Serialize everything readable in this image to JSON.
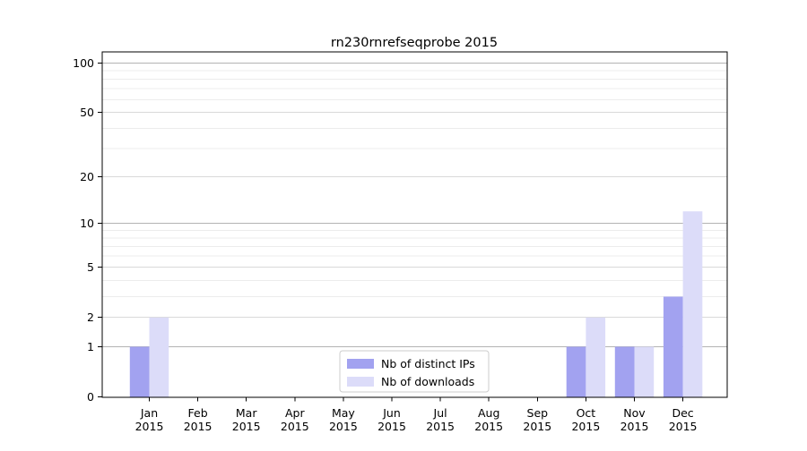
{
  "chart_data": {
    "type": "bar",
    "title": "rn230rnrefseqprobe 2015",
    "categories": [
      "Jan",
      "Feb",
      "Mar",
      "Apr",
      "May",
      "Jun",
      "Jul",
      "Aug",
      "Sep",
      "Oct",
      "Nov",
      "Dec"
    ],
    "category_year": "2015",
    "series": [
      {
        "name": "Nb of distinct IPs",
        "color": "#a2a2f0",
        "values": [
          1,
          0,
          0,
          0,
          0,
          0,
          0,
          0,
          0,
          1,
          1,
          3
        ]
      },
      {
        "name": "Nb of downloads",
        "color": "#dcdcf9",
        "values": [
          2,
          0,
          0,
          0,
          0,
          0,
          0,
          0,
          0,
          2,
          1,
          12
        ]
      }
    ],
    "xlabel": "",
    "ylabel": "",
    "y_ticks": [
      0,
      1,
      2,
      5,
      10,
      20,
      50,
      100
    ],
    "y_major_gridlines": [
      1,
      10,
      100
    ],
    "y_minor_gridlines": [
      2,
      3,
      4,
      5,
      6,
      7,
      8,
      9,
      20,
      30,
      40,
      50,
      60,
      70,
      80,
      90
    ],
    "y_scale": "log10(1+v)",
    "ylim": [
      0,
      117
    ],
    "grid": true,
    "legend_position": "lower center",
    "grid_colors": {
      "major": "#b3b3b3",
      "labeled_minor": "#d9d9d9",
      "minor": "#ececec"
    }
  }
}
